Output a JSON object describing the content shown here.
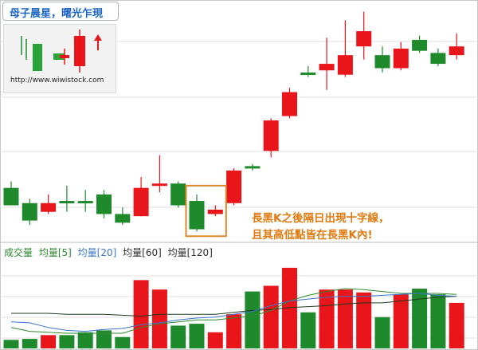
{
  "header": {
    "title": "母子晨星，曙光乍現"
  },
  "logo": {
    "url_text": "http://www.wiwistock.com"
  },
  "annotation": {
    "line1": "長黑K之後隔日出現十字線，",
    "line2": "且其高低點皆在長黑K內!"
  },
  "legend": {
    "items": [
      {
        "label": "成交量",
        "color": "#2f8a2f"
      },
      {
        "label": "均量[5]",
        "color": "#2f8a2f"
      },
      {
        "label": "均量[20]",
        "color": "#3a74c9"
      },
      {
        "label": "均量[60]",
        "color": "#2e2e2e"
      },
      {
        "label": "均量[120]",
        "color": "#2e2e2e"
      }
    ]
  },
  "colors": {
    "up": "#e8151b",
    "down": "#1f8a2c",
    "highlight": "#d98a28",
    "grid": "#e2e2e2"
  },
  "chart_data": {
    "type": "candlestick",
    "price": {
      "ylim": [
        0,
        100
      ],
      "candles": [
        {
          "o": 21,
          "c": 13,
          "h": 24,
          "l": 13
        },
        {
          "o": 14,
          "c": 6,
          "h": 16,
          "l": 4
        },
        {
          "o": 10,
          "c": 14,
          "h": 18,
          "l": 9
        },
        {
          "o": 15,
          "c": 15,
          "h": 22,
          "l": 10
        },
        {
          "o": 15,
          "c": 14,
          "h": 20,
          "l": 10
        },
        {
          "o": 18,
          "c": 9,
          "h": 20,
          "l": 7
        },
        {
          "o": 9,
          "c": 5,
          "h": 12,
          "l": 4
        },
        {
          "o": 8,
          "c": 21,
          "h": 26,
          "l": 8
        },
        {
          "o": 22,
          "c": 23,
          "h": 36,
          "l": 19
        },
        {
          "o": 23,
          "c": 13,
          "h": 24,
          "l": 12
        },
        {
          "o": 15,
          "c": 2,
          "h": 18,
          "l": 1
        },
        {
          "o": 9,
          "c": 11,
          "h": 13,
          "l": 8
        },
        {
          "o": 14,
          "c": 29,
          "h": 30,
          "l": 13
        },
        {
          "o": 31,
          "c": 31,
          "h": 32,
          "l": 29
        },
        {
          "o": 38,
          "c": 52,
          "h": 53,
          "l": 35
        },
        {
          "o": 54,
          "c": 65,
          "h": 67,
          "l": 53
        },
        {
          "o": 74,
          "c": 74,
          "h": 77,
          "l": 72
        },
        {
          "o": 75,
          "c": 78,
          "h": 90,
          "l": 66
        },
        {
          "o": 73,
          "c": 82,
          "h": 98,
          "l": 72
        },
        {
          "o": 86,
          "c": 93,
          "h": 102,
          "l": 80
        },
        {
          "o": 82,
          "c": 76,
          "h": 86,
          "l": 74
        },
        {
          "o": 76,
          "c": 85,
          "h": 88,
          "l": 75
        },
        {
          "o": 89,
          "c": 84,
          "h": 91,
          "l": 83
        },
        {
          "o": 83,
          "c": 78,
          "h": 85,
          "l": 77
        },
        {
          "o": 82,
          "c": 86,
          "h": 92,
          "l": 80
        }
      ]
    },
    "volume": {
      "ylim": [
        0,
        100
      ],
      "values": [
        9,
        10,
        14,
        14,
        17,
        19,
        12,
        72,
        62,
        24,
        26,
        17,
        36,
        60,
        66,
        85,
        38,
        62,
        62,
        59,
        33,
        57,
        63,
        57,
        48
      ],
      "ma_a": [
        37,
        37,
        37,
        36,
        36,
        36,
        35,
        34,
        36,
        36,
        36,
        36,
        38,
        40,
        41,
        43,
        44,
        45,
        47,
        48,
        48,
        50,
        52,
        54,
        55
      ],
      "ma_b": [
        22,
        18,
        17,
        16,
        16,
        16,
        16,
        22,
        26,
        28,
        30,
        30,
        32,
        34,
        40,
        50,
        56,
        60,
        63,
        62,
        60,
        58,
        58,
        58,
        57
      ],
      "ma_c": [
        28,
        27,
        22,
        19,
        18,
        20,
        21,
        25,
        27,
        30,
        32,
        33,
        36,
        39,
        45,
        50,
        52,
        54,
        55,
        55,
        56,
        57,
        58,
        56,
        55
      ]
    }
  }
}
